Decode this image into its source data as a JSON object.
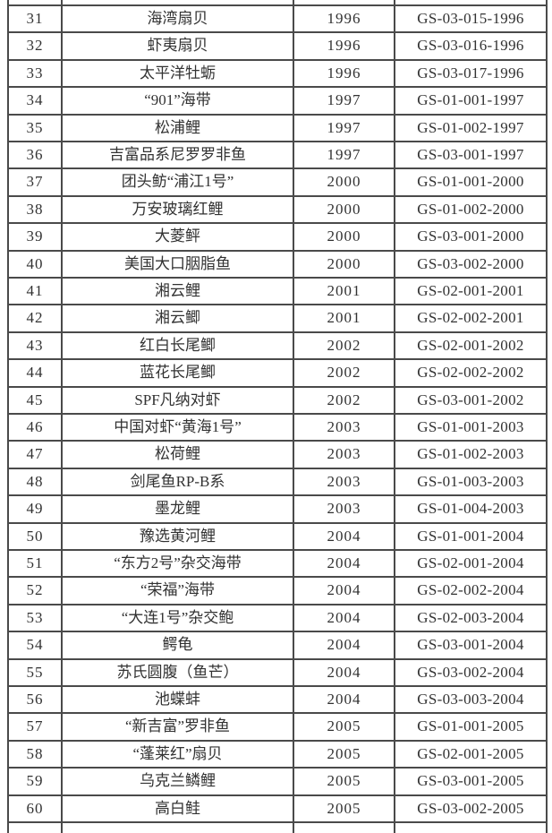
{
  "page": {
    "background": "#ffffff"
  },
  "table": {
    "border_color": "#4a4a4a",
    "text_color": "#323232",
    "columns": [
      "index",
      "name",
      "year",
      "code"
    ],
    "rows": [
      {
        "index": "31",
        "name": "海湾扇贝",
        "year": "1996",
        "code": "GS-03-015-1996"
      },
      {
        "index": "32",
        "name": "虾夷扇贝",
        "year": "1996",
        "code": "GS-03-016-1996"
      },
      {
        "index": "33",
        "name": "太平洋牡蛎",
        "year": "1996",
        "code": "GS-03-017-1996"
      },
      {
        "index": "34",
        "name": "“901”海带",
        "year": "1997",
        "code": "GS-01-001-1997"
      },
      {
        "index": "35",
        "name": "松浦鲤",
        "year": "1997",
        "code": "GS-01-002-1997"
      },
      {
        "index": "36",
        "name": "吉富品系尼罗罗非鱼",
        "year": "1997",
        "code": "GS-03-001-1997"
      },
      {
        "index": "37",
        "name": "团头鲂“浦江1号”",
        "year": "2000",
        "code": "GS-01-001-2000"
      },
      {
        "index": "38",
        "name": "万安玻璃红鲤",
        "year": "2000",
        "code": "GS-01-002-2000"
      },
      {
        "index": "39",
        "name": "大菱鲆",
        "year": "2000",
        "code": "GS-03-001-2000"
      },
      {
        "index": "40",
        "name": "美国大口胭脂鱼",
        "year": "2000",
        "code": "GS-03-002-2000"
      },
      {
        "index": "41",
        "name": "湘云鲤",
        "year": "2001",
        "code": "GS-02-001-2001"
      },
      {
        "index": "42",
        "name": "湘云鲫",
        "year": "2001",
        "code": "GS-02-002-2001"
      },
      {
        "index": "43",
        "name": "红白长尾鲫",
        "year": "2002",
        "code": "GS-02-001-2002"
      },
      {
        "index": "44",
        "name": "蓝花长尾鲫",
        "year": "2002",
        "code": "GS-02-002-2002"
      },
      {
        "index": "45",
        "name": "SPF凡纳对虾",
        "year": "2002",
        "code": "GS-03-001-2002"
      },
      {
        "index": "46",
        "name": "中国对虾“黄海1号”",
        "year": "2003",
        "code": "GS-01-001-2003"
      },
      {
        "index": "47",
        "name": "松荷鲤",
        "year": "2003",
        "code": "GS-01-002-2003"
      },
      {
        "index": "48",
        "name": "剑尾鱼RP-B系",
        "year": "2003",
        "code": "GS-01-003-2003"
      },
      {
        "index": "49",
        "name": "墨龙鲤",
        "year": "2003",
        "code": "GS-01-004-2003"
      },
      {
        "index": "50",
        "name": "豫选黄河鲤",
        "year": "2004",
        "code": "GS-01-001-2004"
      },
      {
        "index": "51",
        "name": "“东方2号”杂交海带",
        "year": "2004",
        "code": "GS-02-001-2004"
      },
      {
        "index": "52",
        "name": "“荣福”海带",
        "year": "2004",
        "code": "GS-02-002-2004"
      },
      {
        "index": "53",
        "name": "“大连1号”杂交鲍",
        "year": "2004",
        "code": "GS-02-003-2004"
      },
      {
        "index": "54",
        "name": "鳄龟",
        "year": "2004",
        "code": "GS-03-001-2004"
      },
      {
        "index": "55",
        "name": "苏氏圆腹（鱼芒）",
        "year": "2004",
        "code": "GS-03-002-2004"
      },
      {
        "index": "56",
        "name": "池蝶蚌",
        "year": "2004",
        "code": "GS-03-003-2004"
      },
      {
        "index": "57",
        "name": "“新吉富”罗非鱼",
        "year": "2005",
        "code": "GS-01-001-2005"
      },
      {
        "index": "58",
        "name": "“蓬莱红”扇贝",
        "year": "2005",
        "code": "GS-02-001-2005"
      },
      {
        "index": "59",
        "name": "乌克兰鳞鲤",
        "year": "2005",
        "code": "GS-03-001-2005"
      },
      {
        "index": "60",
        "name": "高白鲑",
        "year": "2005",
        "code": "GS-03-002-2005"
      }
    ]
  }
}
